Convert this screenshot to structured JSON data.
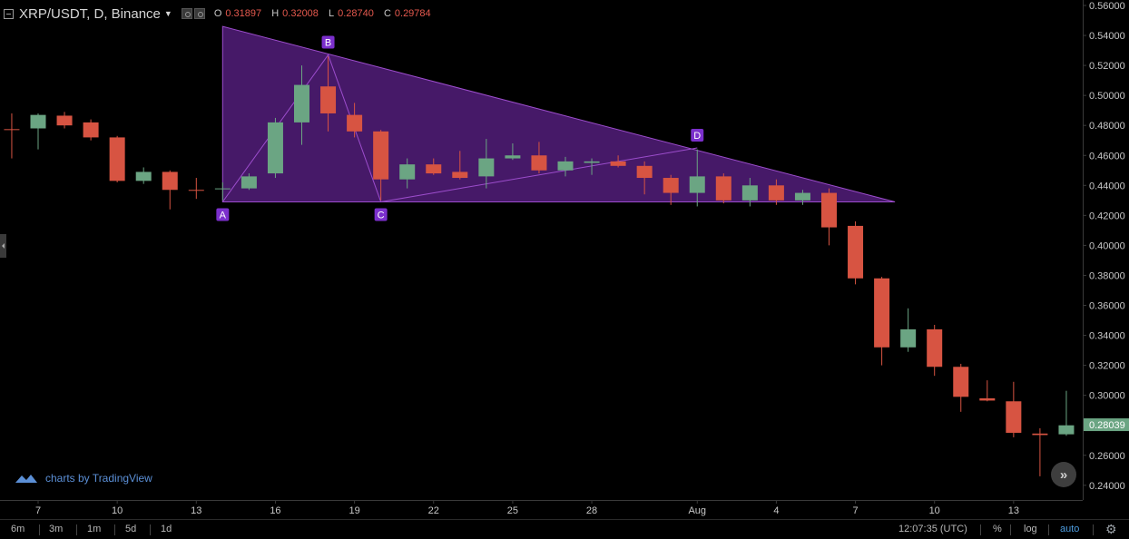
{
  "header": {
    "title": "XRP/USDT, D, Binance",
    "ohlc": [
      {
        "label": "O",
        "value": "0.31897"
      },
      {
        "label": "H",
        "value": "0.32008"
      },
      {
        "label": "L",
        "value": "0.28740"
      },
      {
        "label": "C",
        "value": "0.29784"
      }
    ]
  },
  "colors": {
    "up": "#6ba583",
    "down": "#d75442",
    "pattern_fill": "#4a1a6e",
    "pattern_stroke": "#9c4dcc",
    "label_bg": "#7b2fcc",
    "price_badge": "#6ba583",
    "axis_text": "#c8c8c8",
    "axis_line": "#3a3a3a"
  },
  "chart_data": {
    "type": "candlestick",
    "title": "XRP/USDT, D, Binance",
    "ylim": [
      0.232,
      0.564
    ],
    "y_ticks": [
      "0.56000",
      "0.54000",
      "0.52000",
      "0.50000",
      "0.48000",
      "0.46000",
      "0.44000",
      "0.42000",
      "0.40000",
      "0.38000",
      "0.36000",
      "0.34000",
      "0.32000",
      "0.30000",
      "0.28000",
      "0.26000",
      "0.24000"
    ],
    "x_ticks": [
      {
        "label": "7",
        "day": 0
      },
      {
        "label": "10",
        "day": 3
      },
      {
        "label": "13",
        "day": 6
      },
      {
        "label": "16",
        "day": 9
      },
      {
        "label": "19",
        "day": 12
      },
      {
        "label": "22",
        "day": 15
      },
      {
        "label": "25",
        "day": 18
      },
      {
        "label": "28",
        "day": 21
      },
      {
        "label": "Aug",
        "day": 25
      },
      {
        "label": "4",
        "day": 28
      },
      {
        "label": "7",
        "day": 31
      },
      {
        "label": "10",
        "day": 34
      },
      {
        "label": "13",
        "day": 37
      }
    ],
    "candles": [
      {
        "day": -1,
        "o": 0.4775,
        "h": 0.488,
        "l": 0.458,
        "c": 0.4772
      },
      {
        "day": 0,
        "o": 0.478,
        "h": 0.488,
        "l": 0.464,
        "c": 0.487
      },
      {
        "day": 1,
        "o": 0.4865,
        "h": 0.489,
        "l": 0.478,
        "c": 0.48
      },
      {
        "day": 2,
        "o": 0.482,
        "h": 0.484,
        "l": 0.47,
        "c": 0.472
      },
      {
        "day": 3,
        "o": 0.472,
        "h": 0.473,
        "l": 0.442,
        "c": 0.443
      },
      {
        "day": 4,
        "o": 0.443,
        "h": 0.452,
        "l": 0.441,
        "c": 0.449
      },
      {
        "day": 5,
        "o": 0.449,
        "h": 0.45,
        "l": 0.424,
        "c": 0.437
      },
      {
        "day": 6,
        "o": 0.437,
        "h": 0.445,
        "l": 0.431,
        "c": 0.4365
      },
      {
        "day": 7,
        "o": 0.4375,
        "h": 0.442,
        "l": 0.43,
        "c": 0.438
      },
      {
        "day": 8,
        "o": 0.438,
        "h": 0.448,
        "l": 0.437,
        "c": 0.446
      },
      {
        "day": 9,
        "o": 0.448,
        "h": 0.485,
        "l": 0.445,
        "c": 0.482
      },
      {
        "day": 10,
        "o": 0.482,
        "h": 0.52,
        "l": 0.467,
        "c": 0.507
      },
      {
        "day": 11,
        "o": 0.506,
        "h": 0.526,
        "l": 0.476,
        "c": 0.488
      },
      {
        "day": 12,
        "o": 0.487,
        "h": 0.495,
        "l": 0.472,
        "c": 0.476
      },
      {
        "day": 13,
        "o": 0.476,
        "h": 0.477,
        "l": 0.43,
        "c": 0.444
      },
      {
        "day": 14,
        "o": 0.444,
        "h": 0.458,
        "l": 0.438,
        "c": 0.454
      },
      {
        "day": 15,
        "o": 0.454,
        "h": 0.458,
        "l": 0.447,
        "c": 0.448
      },
      {
        "day": 16,
        "o": 0.449,
        "h": 0.463,
        "l": 0.444,
        "c": 0.445
      },
      {
        "day": 17,
        "o": 0.446,
        "h": 0.471,
        "l": 0.438,
        "c": 0.458
      },
      {
        "day": 18,
        "o": 0.458,
        "h": 0.468,
        "l": 0.457,
        "c": 0.46
      },
      {
        "day": 19,
        "o": 0.46,
        "h": 0.469,
        "l": 0.448,
        "c": 0.45
      },
      {
        "day": 20,
        "o": 0.45,
        "h": 0.459,
        "l": 0.446,
        "c": 0.456
      },
      {
        "day": 21,
        "o": 0.455,
        "h": 0.458,
        "l": 0.447,
        "c": 0.456
      },
      {
        "day": 22,
        "o": 0.456,
        "h": 0.46,
        "l": 0.452,
        "c": 0.453
      },
      {
        "day": 23,
        "o": 0.453,
        "h": 0.456,
        "l": 0.434,
        "c": 0.445
      },
      {
        "day": 24,
        "o": 0.445,
        "h": 0.447,
        "l": 0.427,
        "c": 0.435
      },
      {
        "day": 25,
        "o": 0.435,
        "h": 0.464,
        "l": 0.426,
        "c": 0.446
      },
      {
        "day": 26,
        "o": 0.446,
        "h": 0.448,
        "l": 0.428,
        "c": 0.43
      },
      {
        "day": 27,
        "o": 0.43,
        "h": 0.445,
        "l": 0.426,
        "c": 0.44
      },
      {
        "day": 28,
        "o": 0.44,
        "h": 0.444,
        "l": 0.427,
        "c": 0.43
      },
      {
        "day": 29,
        "o": 0.43,
        "h": 0.437,
        "l": 0.427,
        "c": 0.435
      },
      {
        "day": 30,
        "o": 0.435,
        "h": 0.438,
        "l": 0.4,
        "c": 0.412
      },
      {
        "day": 31,
        "o": 0.413,
        "h": 0.416,
        "l": 0.374,
        "c": 0.378
      },
      {
        "day": 32,
        "o": 0.378,
        "h": 0.379,
        "l": 0.32,
        "c": 0.332
      },
      {
        "day": 33,
        "o": 0.332,
        "h": 0.358,
        "l": 0.329,
        "c": 0.344
      },
      {
        "day": 34,
        "o": 0.344,
        "h": 0.347,
        "l": 0.313,
        "c": 0.319
      },
      {
        "day": 35,
        "o": 0.319,
        "h": 0.321,
        "l": 0.289,
        "c": 0.299
      },
      {
        "day": 36,
        "o": 0.298,
        "h": 0.31,
        "l": 0.296,
        "c": 0.2965
      },
      {
        "day": 37,
        "o": 0.296,
        "h": 0.309,
        "l": 0.272,
        "c": 0.275
      },
      {
        "day": 38,
        "o": 0.2745,
        "h": 0.278,
        "l": 0.246,
        "c": 0.2735
      },
      {
        "day": 39,
        "o": 0.274,
        "h": 0.303,
        "l": 0.273,
        "c": 0.28
      }
    ],
    "pattern": {
      "name": "ABCD",
      "points": [
        {
          "label": "A",
          "day": 7,
          "price": 0.429
        },
        {
          "label": "B",
          "day": 11,
          "price": 0.527
        },
        {
          "label": "C",
          "day": 13,
          "price": 0.429
        },
        {
          "label": "D",
          "day": 25,
          "price": 0.465
        }
      ],
      "triangle": [
        {
          "day": 7,
          "price": 0.546
        },
        {
          "day": 32.5,
          "price": 0.429
        },
        {
          "day": 7,
          "price": 0.429
        }
      ]
    },
    "last_price": "0.28039",
    "last_price_value": 0.28039
  },
  "watermark": "charts by TradingView",
  "bottom_bar": {
    "ranges": [
      "6m",
      "3m",
      "1m",
      "5d",
      "1d"
    ],
    "clock": "12:07:35 (UTC)",
    "percent_label": "%",
    "log_label": "log",
    "auto_label": "auto"
  }
}
